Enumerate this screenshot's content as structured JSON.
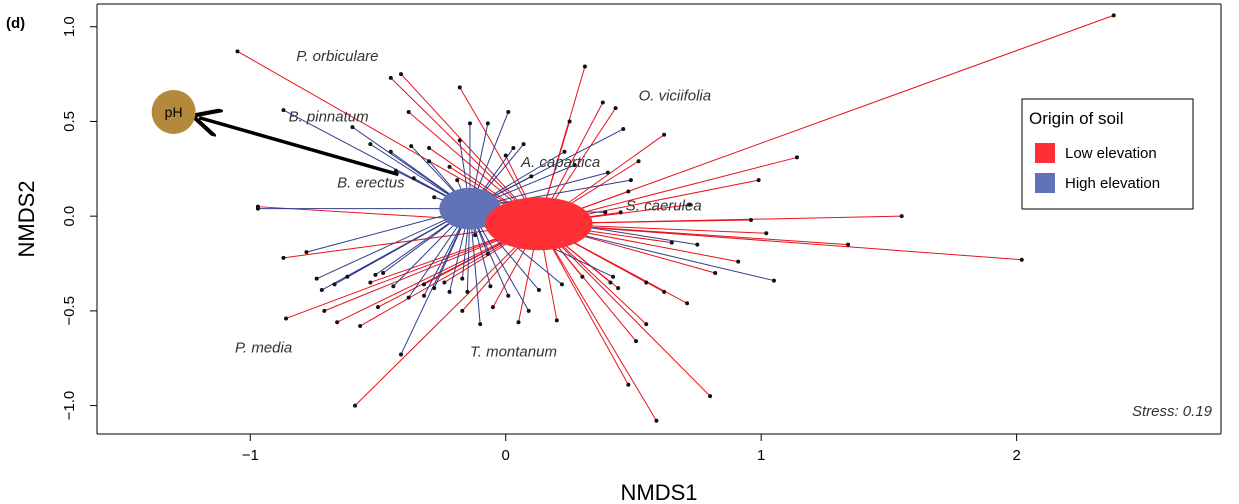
{
  "panel_label": "(d)",
  "colors": {
    "low": "#ff2f36",
    "high": "#6272b6",
    "low_line": "#e8121c",
    "high_line": "#2f3c8c",
    "ph": "#b5893c",
    "point": "#111111"
  },
  "chart_data": {
    "type": "scatter",
    "xlabel": "NMDS1",
    "ylabel": "NMDS2",
    "xlim": [
      -1.6,
      2.8
    ],
    "ylim": [
      -1.15,
      1.12
    ],
    "xticks": [
      "-1",
      "0",
      "1",
      "2"
    ],
    "yticks": [
      "-1.0",
      "-0.5",
      "0.0",
      "0.5",
      "1.0"
    ],
    "stress": "Stress: 0.19",
    "legend": {
      "title": "Origin of soil",
      "position": "right",
      "items": [
        {
          "label": "Low elevation",
          "color": "#ff2f36"
        },
        {
          "label": "High elevation",
          "color": "#6272b6"
        }
      ]
    },
    "centroids": [
      {
        "group": "Low elevation",
        "x": 0.13,
        "y": -0.04,
        "rx": 0.21,
        "ry": 0.14
      },
      {
        "group": "High elevation",
        "x": -0.14,
        "y": 0.04,
        "rx": 0.12,
        "ry": 0.11
      }
    ],
    "vector": {
      "label": "pH",
      "x_start": -0.42,
      "y_start": 0.22,
      "x_end": -1.2,
      "y_end": 0.52,
      "label_x": -1.3,
      "label_y": 0.55
    },
    "species_labels": [
      {
        "text": "P. orbiculare",
        "x": -0.82,
        "y": 0.82
      },
      {
        "text": "O. viciifolia",
        "x": 0.52,
        "y": 0.61
      },
      {
        "text": "B. pinnatum",
        "x": -0.85,
        "y": 0.5
      },
      {
        "text": "A. capartica",
        "x": 0.06,
        "y": 0.26
      },
      {
        "text": "B. erectus",
        "x": -0.66,
        "y": 0.15
      },
      {
        "text": "S. caerulea",
        "x": 0.47,
        "y": 0.03
      },
      {
        "text": "P. media",
        "x": -1.06,
        "y": -0.72
      },
      {
        "text": "T. montanum",
        "x": -0.14,
        "y": -0.74
      }
    ],
    "series": [
      {
        "name": "Low elevation",
        "points": [
          [
            -1.05,
            0.87
          ],
          [
            -0.97,
            0.05
          ],
          [
            -0.86,
            -0.54
          ],
          [
            -0.59,
            -1.0
          ],
          [
            -0.45,
            0.73
          ],
          [
            -0.41,
            0.75
          ],
          [
            -0.18,
            0.68
          ],
          [
            0.31,
            0.79
          ],
          [
            0.38,
            0.6
          ],
          [
            0.62,
            0.43
          ],
          [
            2.38,
            1.06
          ],
          [
            1.14,
            0.31
          ],
          [
            0.99,
            0.19
          ],
          [
            0.72,
            0.06
          ],
          [
            0.96,
            -0.02
          ],
          [
            1.55,
            0.0
          ],
          [
            2.02,
            -0.23
          ],
          [
            1.34,
            -0.15
          ],
          [
            1.02,
            -0.09
          ],
          [
            0.91,
            -0.24
          ],
          [
            0.82,
            -0.3
          ],
          [
            0.59,
            -1.08
          ],
          [
            0.8,
            -0.95
          ],
          [
            0.48,
            -0.89
          ],
          [
            0.51,
            -0.66
          ],
          [
            0.55,
            -0.57
          ],
          [
            0.71,
            -0.46
          ],
          [
            0.62,
            -0.4
          ],
          [
            0.44,
            -0.38
          ],
          [
            0.41,
            -0.35
          ],
          [
            0.3,
            -0.32
          ],
          [
            0.2,
            -0.55
          ],
          [
            0.05,
            -0.56
          ],
          [
            -0.05,
            -0.48
          ],
          [
            -0.17,
            -0.5
          ],
          [
            -0.24,
            -0.35
          ],
          [
            -0.32,
            -0.36
          ],
          [
            -0.57,
            -0.58
          ],
          [
            -0.66,
            -0.56
          ],
          [
            -0.71,
            -0.5
          ],
          [
            -0.53,
            -0.35
          ],
          [
            -0.5,
            -0.48
          ],
          [
            -0.87,
            -0.22
          ],
          [
            0.25,
            0.5
          ],
          [
            0.43,
            0.57
          ],
          [
            0.52,
            0.29
          ],
          [
            0.48,
            0.13
          ],
          [
            0.45,
            0.02
          ],
          [
            0.0,
            0.32
          ],
          [
            -0.3,
            0.36
          ],
          [
            -0.22,
            0.26
          ],
          [
            0.55,
            -0.35
          ],
          [
            0.65,
            -0.14
          ],
          [
            -0.38,
            0.55
          ]
        ]
      },
      {
        "name": "High elevation",
        "points": [
          [
            -0.97,
            0.04
          ],
          [
            -0.87,
            0.56
          ],
          [
            -0.6,
            0.47
          ],
          [
            -0.53,
            0.38
          ],
          [
            -0.45,
            0.34
          ],
          [
            -0.37,
            0.37
          ],
          [
            -0.3,
            0.29
          ],
          [
            -0.19,
            0.19
          ],
          [
            -0.18,
            0.4
          ],
          [
            -0.14,
            0.49
          ],
          [
            -0.07,
            0.49
          ],
          [
            0.01,
            0.55
          ],
          [
            0.03,
            0.36
          ],
          [
            0.07,
            0.38
          ],
          [
            0.1,
            0.21
          ],
          [
            0.23,
            0.34
          ],
          [
            0.27,
            0.27
          ],
          [
            0.4,
            0.23
          ],
          [
            0.46,
            0.46
          ],
          [
            0.49,
            0.19
          ],
          [
            -0.78,
            -0.19
          ],
          [
            -0.72,
            -0.39
          ],
          [
            -0.74,
            -0.33
          ],
          [
            -0.67,
            -0.36
          ],
          [
            -0.62,
            -0.32
          ],
          [
            -0.51,
            -0.31
          ],
          [
            -0.48,
            -0.3
          ],
          [
            -0.44,
            -0.37
          ],
          [
            -0.38,
            -0.43
          ],
          [
            -0.32,
            -0.42
          ],
          [
            -0.28,
            -0.38
          ],
          [
            -0.22,
            -0.4
          ],
          [
            -0.17,
            -0.33
          ],
          [
            -0.15,
            -0.4
          ],
          [
            -0.1,
            -0.57
          ],
          [
            -0.06,
            -0.37
          ],
          [
            0.01,
            -0.42
          ],
          [
            0.09,
            -0.5
          ],
          [
            0.13,
            -0.39
          ],
          [
            0.22,
            -0.36
          ],
          [
            0.42,
            -0.32
          ],
          [
            1.05,
            -0.34
          ],
          [
            0.75,
            -0.15
          ],
          [
            0.39,
            0.02
          ],
          [
            -0.07,
            -0.2
          ],
          [
            -0.36,
            0.2
          ],
          [
            -0.43,
            0.24
          ],
          [
            -0.28,
            0.1
          ],
          [
            -0.12,
            -0.1
          ],
          [
            -0.41,
            -0.73
          ]
        ]
      }
    ]
  }
}
